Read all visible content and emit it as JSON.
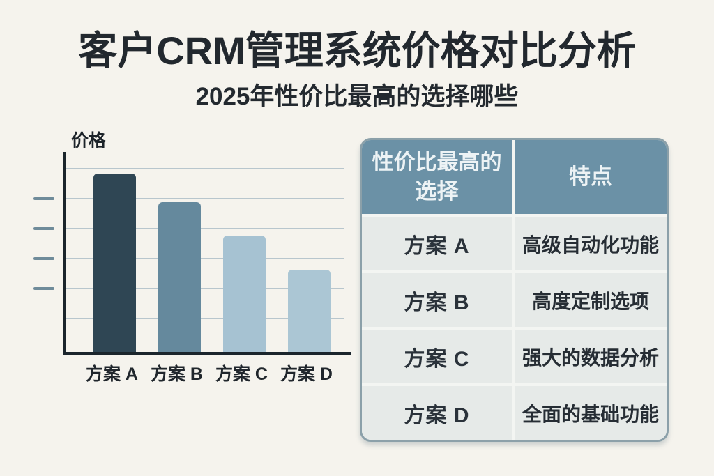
{
  "header": {
    "title": "客户CRM管理系统价格对比分析",
    "subtitle": "2025年性价比最高的选择哪些"
  },
  "chart": {
    "y_axis_label": "价格"
  },
  "chart_data": {
    "type": "bar",
    "title": "",
    "xlabel": "",
    "ylabel": "价格",
    "categories": [
      "方案 A",
      "方案 B",
      "方案 C",
      "方案 D"
    ],
    "values": [
      100,
      84,
      65,
      46
    ],
    "ylim": [
      0,
      112
    ],
    "y_tick_labels": [],
    "gridlines": "on",
    "legend": "none",
    "bar_colors": [
      "#2f4654",
      "#65899d",
      "#a6c2d2",
      "#abc6d4"
    ]
  },
  "table": {
    "headers": [
      "性价比最高的\n选择",
      "特点"
    ],
    "rows": [
      {
        "plan": "方案 A",
        "feature": "高级自动化功能"
      },
      {
        "plan": "方案 B",
        "feature": "高度定制选项"
      },
      {
        "plan": "方案 C",
        "feature": "强大的数据分析"
      },
      {
        "plan": "方案 D",
        "feature": "全面的基础功能"
      }
    ]
  },
  "colors": {
    "background": "#f5f3ed",
    "title_text": "#22282e",
    "axis": "#1b252c",
    "gridline": "#b8c6cd",
    "y_tick": "#6f8b9a",
    "table_header_bg": "#6b91a6",
    "table_header_text": "#edf3f5",
    "table_cell_bg": "#e6eae8",
    "table_border": "#8ba0a9"
  }
}
